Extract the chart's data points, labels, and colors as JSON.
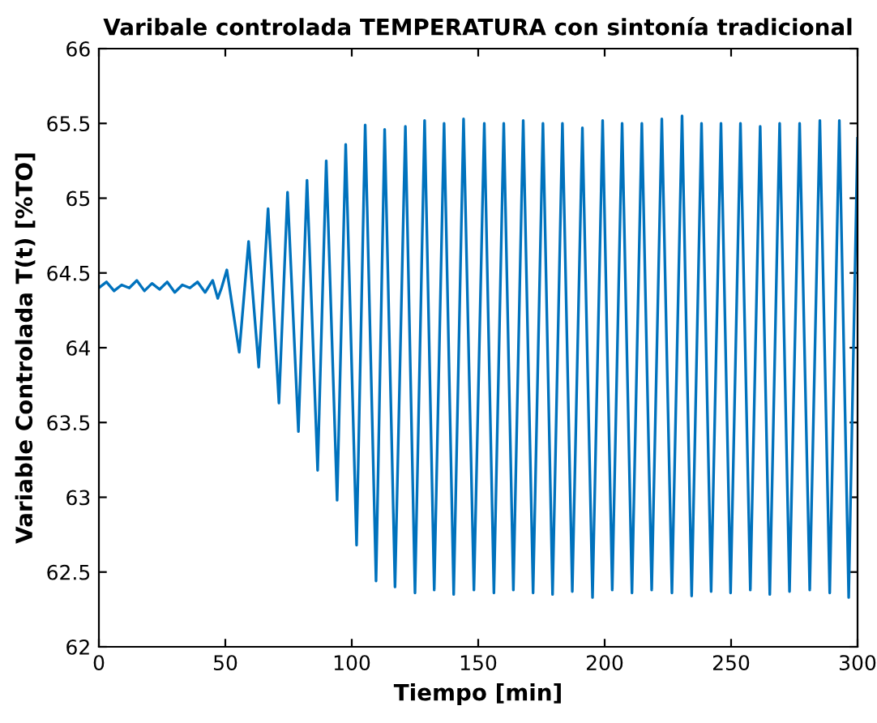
{
  "chart_data": {
    "type": "line",
    "title": "Varibale controlada TEMPERATURA con sintonía tradicional",
    "xlabel": "Tiempo [min]",
    "ylabel": "Variable Controlada T(t) [%TO]",
    "xlim": [
      0,
      300
    ],
    "ylim": [
      62,
      66
    ],
    "xticks": [
      0,
      50,
      100,
      150,
      200,
      250,
      300
    ],
    "yticks": [
      62,
      62.5,
      63,
      63.5,
      64,
      64.5,
      65,
      65.5,
      66
    ],
    "grid": false,
    "legend": false,
    "series": [
      {
        "color": "#0072bd",
        "x": [
          0,
          3,
          6,
          9,
          12,
          15,
          18,
          21,
          24,
          27,
          30,
          33,
          36,
          39,
          42,
          45,
          47,
          48.5,
          50.6,
          55.5,
          59.2,
          63.2,
          66.9,
          71.2,
          74.6,
          78.9,
          82.3,
          86.5,
          89.9,
          94.2,
          97.6,
          101.9,
          105.3,
          109.6,
          113.0,
          117.1,
          121.2,
          125.0,
          128.8,
          132.6,
          136.5,
          140.3,
          144.2,
          148.3,
          152.4,
          156.2,
          160.1,
          163.9,
          167.8,
          171.7,
          175.6,
          179.4,
          183.3,
          187.2,
          191.2,
          195.2,
          199.2,
          203.0,
          206.9,
          210.8,
          214.7,
          218.6,
          222.6,
          226.6,
          230.6,
          234.4,
          238.3,
          242.1,
          246.0,
          249.8,
          253.7,
          257.6,
          261.5,
          265.3,
          269.2,
          273.1,
          277.1,
          281.1,
          285.1,
          289.0,
          292.8,
          296.5,
          300
        ],
        "values": [
          64.4,
          64.44,
          64.38,
          64.42,
          64.4,
          64.45,
          64.38,
          64.43,
          64.39,
          64.44,
          64.37,
          64.42,
          64.4,
          64.44,
          64.37,
          64.45,
          64.33,
          64.4,
          64.52,
          63.97,
          64.71,
          63.87,
          64.93,
          63.63,
          65.04,
          63.44,
          65.12,
          63.18,
          65.25,
          62.98,
          65.36,
          62.68,
          65.49,
          62.44,
          65.46,
          62.4,
          65.48,
          62.36,
          65.52,
          62.38,
          65.5,
          62.35,
          65.53,
          62.38,
          65.5,
          62.36,
          65.5,
          62.38,
          65.52,
          62.36,
          65.5,
          62.35,
          65.5,
          62.37,
          65.47,
          62.33,
          65.52,
          62.38,
          65.5,
          62.36,
          65.5,
          62.38,
          65.53,
          62.36,
          65.55,
          62.34,
          65.5,
          62.37,
          65.5,
          62.36,
          65.5,
          62.38,
          65.48,
          62.35,
          65.5,
          62.37,
          65.5,
          62.38,
          65.52,
          62.36,
          65.52,
          62.33,
          65.4
        ]
      }
    ]
  }
}
